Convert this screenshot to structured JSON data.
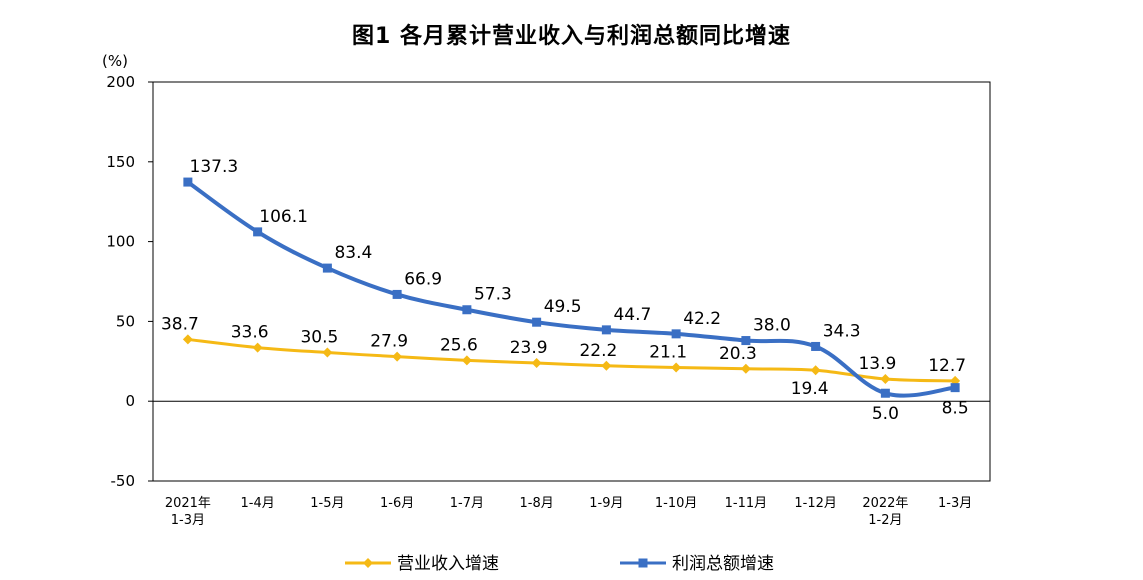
{
  "chart_data": {
    "type": "line",
    "title": "图1  各月累计营业收入与利润总额同比增速",
    "ylabel": "(%)",
    "xlabel": "",
    "ylim": [
      -50,
      200
    ],
    "yticks": [
      200,
      150,
      100,
      50,
      0,
      -50
    ],
    "grid": false,
    "legend_position": "bottom",
    "categories": [
      [
        "2021年",
        "1-3月"
      ],
      [
        "1-4月"
      ],
      [
        "1-5月"
      ],
      [
        "1-6月"
      ],
      [
        "1-7月"
      ],
      [
        "1-8月"
      ],
      [
        "1-9月"
      ],
      [
        "1-10月"
      ],
      [
        "1-11月"
      ],
      [
        "1-12月"
      ],
      [
        "2022年",
        "1-2月"
      ],
      [
        "1-3月"
      ]
    ],
    "series": [
      {
        "name": "营业收入增速",
        "color": "#F5B915",
        "marker": "diamond",
        "values": [
          38.7,
          33.6,
          30.5,
          27.9,
          25.6,
          23.9,
          22.2,
          21.1,
          20.3,
          19.4,
          13.9,
          12.7
        ],
        "labels": [
          "38.7",
          "33.6",
          "30.5",
          "27.9",
          "25.6",
          "23.9",
          "22.2",
          "21.1",
          "20.3",
          "19.4",
          "13.9",
          "12.7"
        ]
      },
      {
        "name": "利润总额增速",
        "color": "#3A6FC4",
        "marker": "square",
        "values": [
          137.3,
          106.1,
          83.4,
          66.9,
          57.3,
          49.5,
          44.7,
          42.2,
          38.0,
          34.3,
          5.0,
          8.5
        ],
        "labels": [
          "137.3",
          "106.1",
          "83.4",
          "66.9",
          "57.3",
          "49.5",
          "44.7",
          "42.2",
          "38.0",
          "34.3",
          "5.0",
          "8.5"
        ]
      }
    ]
  }
}
